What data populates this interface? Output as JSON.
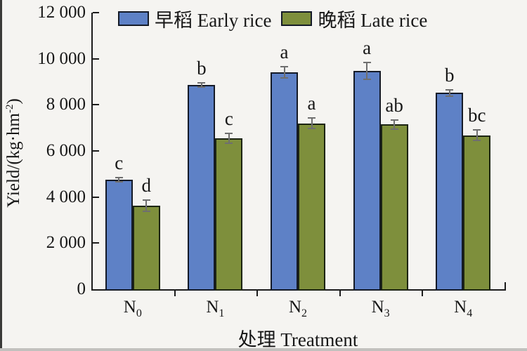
{
  "chart_data": {
    "type": "bar",
    "title": "",
    "xlabel": "处理 Treatment",
    "ylabel_prefix": "Yield/(kg·hm",
    "ylabel_sup": "-2",
    "ylabel_suffix": ")",
    "ylim": [
      0,
      12000
    ],
    "ytick_step": 2000,
    "ytick_labels": [
      "0",
      "2 000",
      "4 000",
      "6 000",
      "8 000",
      "10 000",
      "12 000"
    ],
    "grid": false,
    "legend_position": "top-inside-horizontal",
    "categories": [
      {
        "base": "N",
        "sub": "0"
      },
      {
        "base": "N",
        "sub": "1"
      },
      {
        "base": "N",
        "sub": "2"
      },
      {
        "base": "N",
        "sub": "3"
      },
      {
        "base": "N",
        "sub": "4"
      }
    ],
    "series": [
      {
        "id": "early-rice",
        "label": "早稻 Early rice",
        "color": "#5e81c6",
        "border_color": "#141a27",
        "values": [
          4750,
          8870,
          9400,
          9470,
          8520
        ],
        "errors": [
          100,
          90,
          240,
          370,
          140
        ],
        "sig_letters": [
          "c",
          "b",
          "a",
          "a",
          "b"
        ]
      },
      {
        "id": "late-rice",
        "label": "晚稻 Late rice",
        "color": "#7e8f3c",
        "border_color": "#1c2413",
        "values": [
          3620,
          6550,
          7200,
          7150,
          6680
        ],
        "errors": [
          250,
          220,
          220,
          200,
          230
        ],
        "sig_letters": [
          "d",
          "c",
          "a",
          "ab",
          "bc"
        ]
      }
    ],
    "error_bar_color": "#6f6f6f",
    "axis_color": "#1c1c1c",
    "text_color": "#171717",
    "background_color": "#f5f4f1"
  }
}
